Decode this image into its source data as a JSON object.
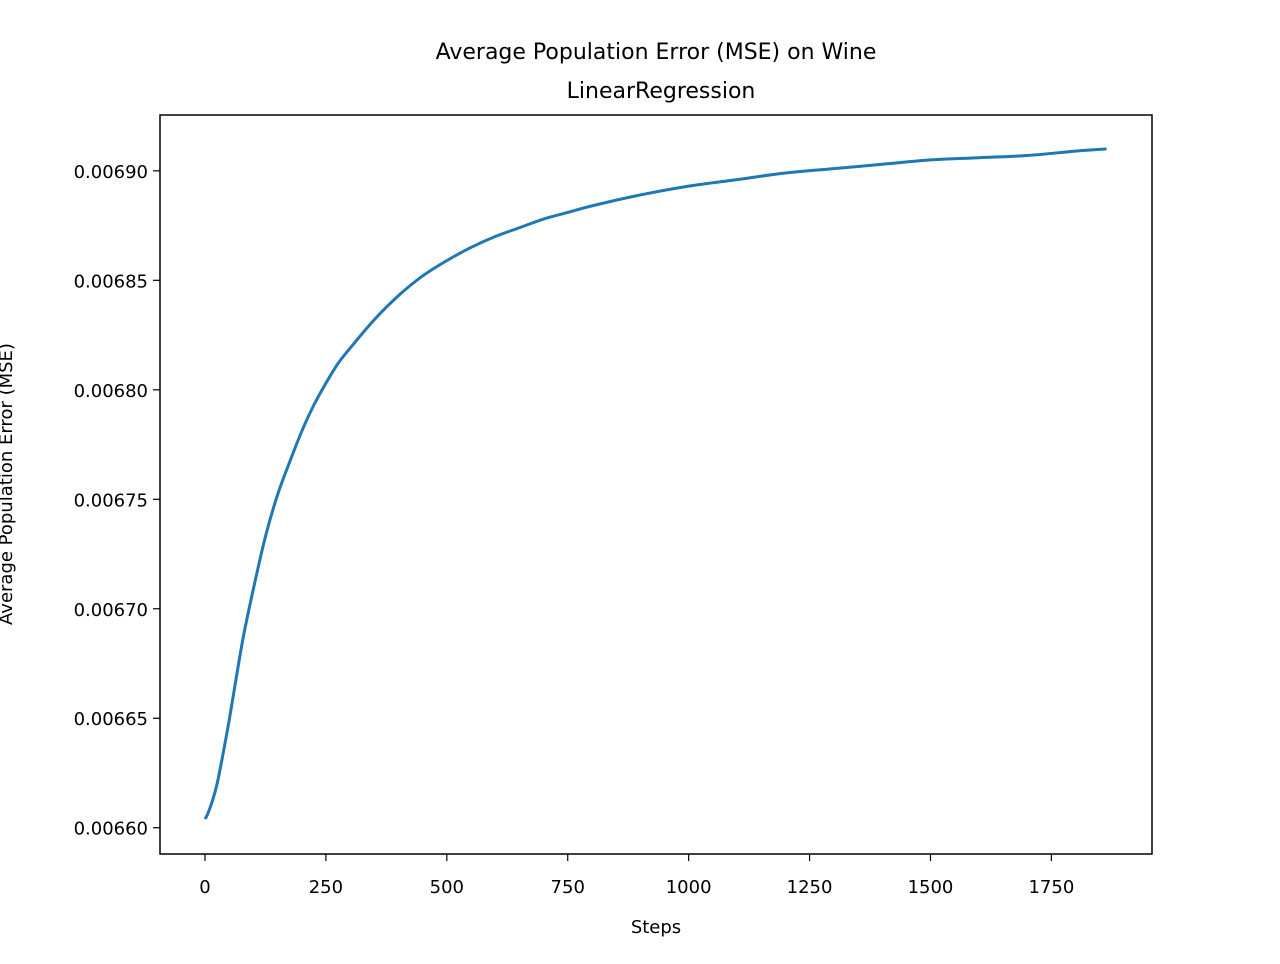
{
  "chart_data": {
    "type": "line",
    "title": "Average Population Error (MSE) on Wine",
    "subtitle": "LinearRegression",
    "xlabel": "Steps",
    "ylabel": "Average Population Error (MSE)",
    "xlim": [
      -93,
      1958
    ],
    "ylim": [
      0.006588,
      0.0069255
    ],
    "xticks": [
      0,
      250,
      500,
      750,
      1000,
      1250,
      1500,
      1750
    ],
    "xtick_labels": [
      "0",
      "250",
      "500",
      "750",
      "1000",
      "1250",
      "1500",
      "1750"
    ],
    "yticks": [
      0.0066,
      0.00665,
      0.0067,
      0.00675,
      0.0068,
      0.00685,
      0.0069
    ],
    "ytick_labels": [
      "0.00660",
      "0.00665",
      "0.00670",
      "0.00675",
      "0.00680",
      "0.00685",
      "0.00690"
    ],
    "grid": false,
    "series": [
      {
        "color": "#1f77b4",
        "x": [
          0,
          5,
          15,
          25,
          35,
          50,
          65,
          80,
          100,
          125,
          150,
          175,
          200,
          225,
          250,
          275,
          300,
          350,
          400,
          450,
          500,
          550,
          600,
          650,
          700,
          750,
          800,
          900,
          1000,
          1100,
          1200,
          1300,
          1400,
          1500,
          1600,
          1700,
          1800,
          1864
        ],
        "y": [
          0.006604,
          0.006606,
          0.006612,
          0.00662,
          0.006631,
          0.006649,
          0.006669,
          0.006688,
          0.006709,
          0.006733,
          0.006752,
          0.006767,
          0.006781,
          0.006793,
          0.006803,
          0.006812,
          0.006819,
          0.006832,
          0.006843,
          0.006852,
          0.006859,
          0.006865,
          0.00687,
          0.006874,
          0.006878,
          0.006881,
          0.006884,
          0.006889,
          0.006893,
          0.006896,
          0.006899,
          0.006901,
          0.006903,
          0.006905,
          0.006906,
          0.006907,
          0.006909,
          0.00691
        ]
      }
    ]
  }
}
